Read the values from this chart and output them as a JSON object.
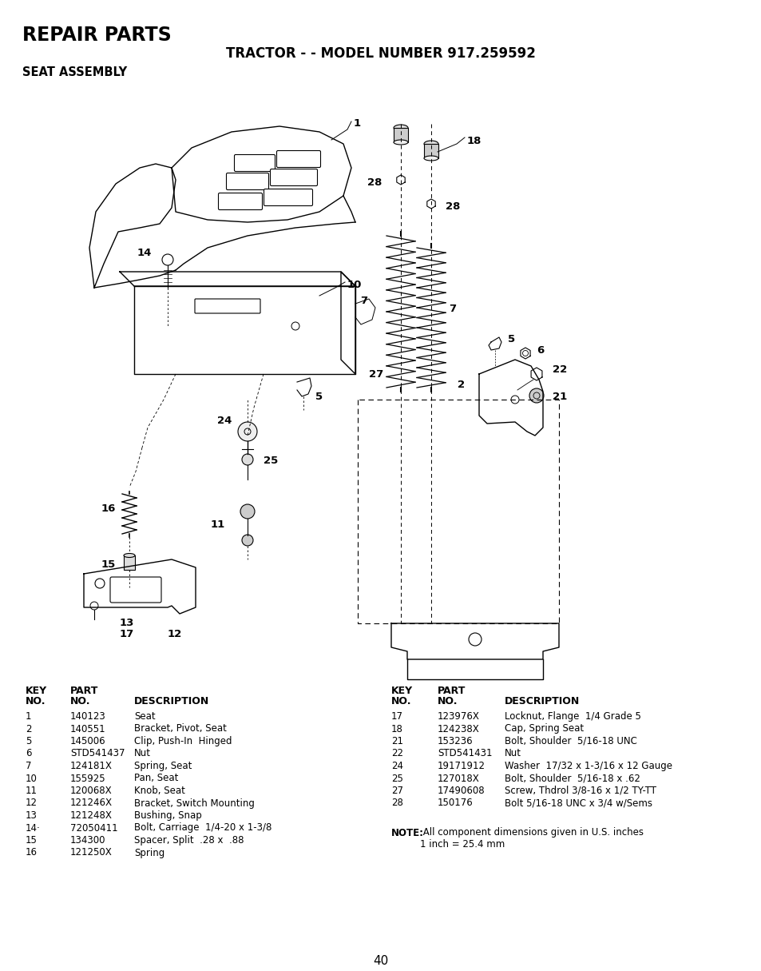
{
  "title_repair": "REPAIR PARTS",
  "title_model": "TRACTOR - - MODEL NUMBER 917.259592",
  "title_section": "SEAT ASSEMBLY",
  "page_number": "40",
  "bg_color": "#ffffff",
  "text_color": "#000000",
  "left_parts": [
    [
      "1",
      "140123",
      "Seat"
    ],
    [
      "2",
      "140551",
      "Bracket, Pivot, Seat"
    ],
    [
      "5",
      "145006",
      "Clip, Push-In  Hinged"
    ],
    [
      "6",
      "STD541437",
      "Nut"
    ],
    [
      "7",
      "124181X",
      "Spring, Seat"
    ],
    [
      "10",
      "155925",
      "Pan, Seat"
    ],
    [
      "11",
      "120068X",
      "Knob, Seat"
    ],
    [
      "12",
      "121246X",
      "Bracket, Switch Mounting"
    ],
    [
      "13",
      "121248X",
      "Bushing, Snap"
    ],
    [
      "14·",
      "72050411",
      "Bolt, Carriage  1/4-20 x 1-3/8"
    ],
    [
      "15",
      "134300",
      "Spacer, Split  .28 x  .88"
    ],
    [
      "16",
      "121250X",
      "Spring"
    ]
  ],
  "right_parts": [
    [
      "17",
      "123976X",
      "Locknut, Flange  1/4 Grade 5"
    ],
    [
      "18",
      "124238X",
      "Cap, Spring Seat"
    ],
    [
      "21",
      "153236",
      "Bolt, Shoulder  5/16-18 UNC"
    ],
    [
      "22",
      "STD541431",
      "Nut"
    ],
    [
      "24",
      "19171912",
      "Washer  17/32 x 1-3/16 x 12 Gauge"
    ],
    [
      "25",
      "127018X",
      "Bolt, Shoulder  5/16-18 x .62"
    ],
    [
      "27",
      "17490608",
      "Screw, Thdrol 3/8-16 x 1/2 TY-TT"
    ],
    [
      "28",
      "150176",
      "Bolt 5/16-18 UNC x 3/4 w/Sems"
    ]
  ],
  "note_bold": "NOTE:",
  "note_text": " All component dimensions given in U.S. inches"
}
